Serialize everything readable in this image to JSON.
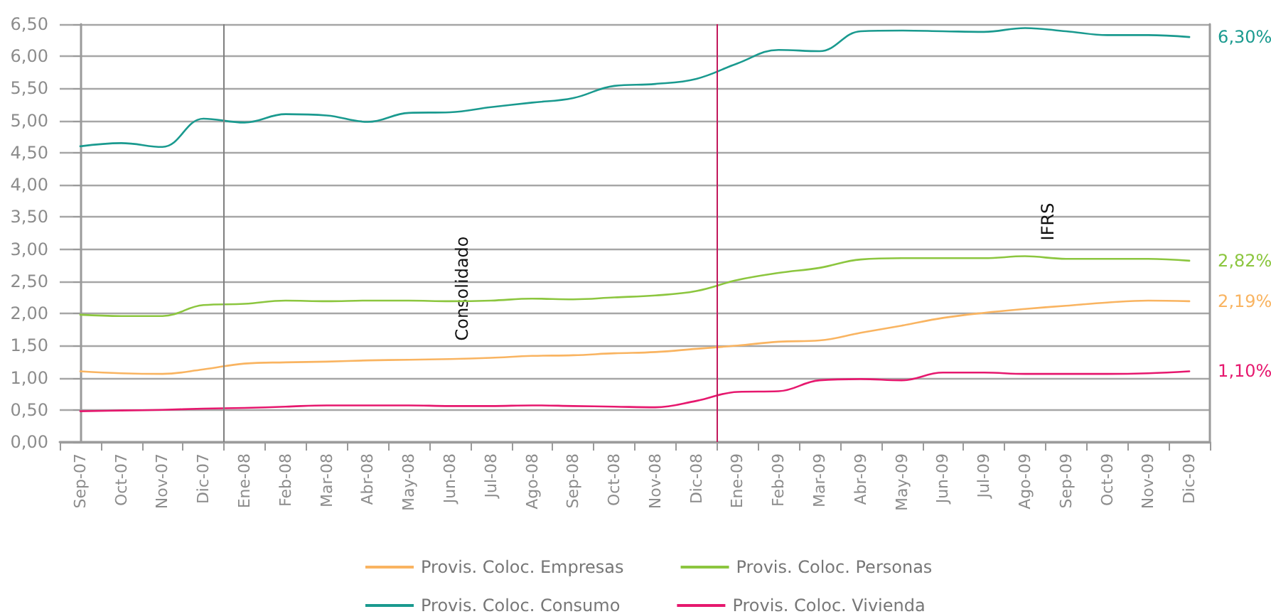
{
  "chart_data": {
    "type": "line",
    "categories": [
      "Sep-07",
      "Oct-07",
      "Nov-07",
      "Dic-07",
      "Ene-08",
      "Feb-08",
      "Mar-08",
      "Abr-08",
      "May-08",
      "Jun-08",
      "Jul-08",
      "Ago-08",
      "Sep-08",
      "Oct-08",
      "Nov-08",
      "Dic-08",
      "Ene-09",
      "Feb-09",
      "Mar-09",
      "Abr-09",
      "May-09",
      "Jun-09",
      "Jul-09",
      "Ago-09",
      "Sep-09",
      "Oct-09",
      "Nov-09",
      "Dic-09"
    ],
    "series": [
      {
        "name": "Provis. Coloc. Empresas",
        "color": "#f9b461",
        "values": [
          1.1,
          1.07,
          1.06,
          1.13,
          1.22,
          1.24,
          1.25,
          1.27,
          1.28,
          1.29,
          1.31,
          1.34,
          1.35,
          1.38,
          1.4,
          1.45,
          1.5,
          1.56,
          1.58,
          1.7,
          1.81,
          1.93,
          2.01,
          2.07,
          2.12,
          2.17,
          2.2,
          2.19
        ],
        "value_labels": [
          null,
          null,
          null,
          null,
          null,
          null,
          null,
          null,
          null,
          null,
          null,
          null,
          null,
          null,
          null,
          null,
          null,
          null,
          null,
          null,
          null,
          null,
          null,
          null,
          null,
          null,
          null,
          "2,19%"
        ]
      },
      {
        "name": "Provis. Coloc. Personas",
        "color": "#8cc63f",
        "values": [
          1.98,
          1.96,
          1.96,
          2.13,
          2.15,
          2.2,
          2.19,
          2.2,
          2.2,
          2.19,
          2.2,
          2.23,
          2.22,
          2.25,
          2.28,
          2.35,
          2.52,
          2.63,
          2.71,
          2.84,
          2.86,
          2.86,
          2.86,
          2.89,
          2.85,
          2.85,
          2.85,
          2.82
        ],
        "value_labels": [
          null,
          null,
          null,
          null,
          null,
          null,
          null,
          null,
          null,
          null,
          null,
          null,
          null,
          null,
          null,
          null,
          null,
          null,
          null,
          null,
          null,
          null,
          null,
          null,
          null,
          null,
          null,
          "2,82%"
        ]
      },
      {
        "name": "Provis. Coloc. Consumo",
        "color": "#1a9a8f",
        "values": [
          4.6,
          4.65,
          4.59,
          5.03,
          4.97,
          5.1,
          5.08,
          4.98,
          5.12,
          5.13,
          5.21,
          5.28,
          5.35,
          5.54,
          5.57,
          5.65,
          5.89,
          6.1,
          6.08,
          6.39,
          6.4,
          6.39,
          6.38,
          6.44,
          6.39,
          6.33,
          6.33,
          6.3
        ],
        "value_labels": [
          null,
          null,
          null,
          null,
          null,
          null,
          null,
          null,
          null,
          null,
          null,
          null,
          null,
          null,
          null,
          null,
          null,
          null,
          null,
          null,
          null,
          null,
          null,
          null,
          null,
          null,
          null,
          "6,30%"
        ]
      },
      {
        "name": "Provis. Coloc. Vivienda",
        "color": "#e6186e",
        "values": [
          0.48,
          0.49,
          0.5,
          0.52,
          0.53,
          0.55,
          0.57,
          0.57,
          0.57,
          0.56,
          0.56,
          0.57,
          0.56,
          0.55,
          0.54,
          0.64,
          0.78,
          0.79,
          0.96,
          0.98,
          0.96,
          1.08,
          1.08,
          1.06,
          1.06,
          1.06,
          1.07,
          1.1
        ],
        "value_labels": [
          null,
          null,
          null,
          null,
          null,
          null,
          null,
          null,
          null,
          null,
          null,
          null,
          null,
          null,
          null,
          null,
          null,
          null,
          null,
          null,
          null,
          null,
          null,
          null,
          null,
          null,
          null,
          "1,10%"
        ]
      }
    ],
    "ylim": [
      0,
      6.5
    ],
    "yticks": [
      {
        "value": 0,
        "label": "0,00"
      },
      {
        "value": 0.5,
        "label": "0,50"
      },
      {
        "value": 1,
        "label": "1,00"
      },
      {
        "value": 1.5,
        "label": "1,50"
      },
      {
        "value": 2,
        "label": "2,00"
      },
      {
        "value": 2.5,
        "label": "2,50"
      },
      {
        "value": 3,
        "label": "3,00"
      },
      {
        "value": 3.5,
        "label": "3,50"
      },
      {
        "value": 4,
        "label": "4,00"
      },
      {
        "value": 4.5,
        "label": "4,50"
      },
      {
        "value": 5,
        "label": "5,00"
      },
      {
        "value": 5.5,
        "label": "5,50"
      },
      {
        "value": 6,
        "label": "6,00"
      },
      {
        "value": 6.5,
        "label": "6,50"
      }
    ],
    "ref_lines": [
      {
        "axis": "x",
        "value": "Ene-08",
        "color": "#7f7f7f"
      },
      {
        "axis": "x",
        "value": "Ene-09",
        "color": "#c2185b"
      }
    ],
    "annotations": [
      "Consolidado",
      "IFRS"
    ],
    "grid": "y",
    "legend": "bottom",
    "marker": "none",
    "line_style": "solid"
  }
}
